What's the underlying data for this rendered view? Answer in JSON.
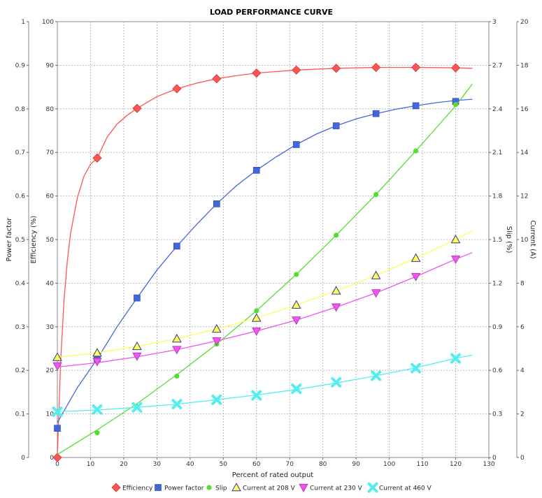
{
  "chart_data": {
    "type": "line",
    "title": "LOAD PERFORMANCE CURVE",
    "xlabel": "Percent of rated output",
    "xlim": [
      0,
      130
    ],
    "x_ticks": [
      0,
      10,
      20,
      30,
      40,
      50,
      60,
      70,
      80,
      90,
      100,
      110,
      120,
      130
    ],
    "grid": true,
    "legend_position": "bottom",
    "axes": {
      "power_factor": {
        "label": "Power factor",
        "lim": [
          0,
          1
        ],
        "ticks": [
          "0",
          "0.1",
          "0.2",
          "0.3",
          "0.4",
          "0.5",
          "0.6",
          "0.7",
          "0.8",
          "0.9",
          "1"
        ]
      },
      "efficiency": {
        "label": "Efficiency (%)",
        "lim": [
          0,
          100
        ],
        "ticks": [
          "0",
          "10",
          "20",
          "30",
          "40",
          "50",
          "60",
          "70",
          "80",
          "90",
          "100"
        ]
      },
      "slip": {
        "label": "Slip (%)",
        "lim": [
          0,
          3
        ],
        "ticks": [
          "0",
          "0.3",
          "0.6",
          "0.9",
          "1.2",
          "1.5",
          "1.8",
          "2.1",
          "2.4",
          "2.7",
          "3"
        ]
      },
      "current": {
        "label": "Current (A)",
        "lim": [
          0,
          20
        ],
        "ticks": [
          "0",
          "2",
          "4",
          "6",
          "8",
          "10",
          "12",
          "14",
          "16",
          "18",
          "20"
        ]
      }
    },
    "series": [
      {
        "name": "Efficiency",
        "axis": "efficiency",
        "color": "#ff5555",
        "marker": "diamond",
        "x": [
          0,
          12,
          24,
          36,
          48,
          60,
          72,
          84,
          96,
          108,
          120
        ],
        "values": [
          0,
          68.7,
          80.1,
          84.6,
          86.9,
          88.2,
          88.9,
          89.3,
          89.5,
          89.5,
          89.4
        ],
        "curve": [
          [
            0,
            0
          ],
          [
            1,
            22
          ],
          [
            2,
            36
          ],
          [
            3,
            45
          ],
          [
            4,
            51.5
          ],
          [
            6,
            59.5
          ],
          [
            8,
            64.5
          ],
          [
            10,
            67.3
          ],
          [
            12,
            68.7
          ],
          [
            15,
            73.5
          ],
          [
            18,
            76.5
          ],
          [
            21,
            78.5
          ],
          [
            24,
            80.1
          ],
          [
            30,
            82.8
          ],
          [
            36,
            84.6
          ],
          [
            42,
            85.9
          ],
          [
            48,
            86.9
          ],
          [
            54,
            87.6
          ],
          [
            60,
            88.2
          ],
          [
            72,
            88.9
          ],
          [
            84,
            89.3
          ],
          [
            96,
            89.5
          ],
          [
            108,
            89.5
          ],
          [
            120,
            89.4
          ],
          [
            125,
            89.3
          ]
        ]
      },
      {
        "name": "Power factor",
        "axis": "power_factor",
        "color": "#4466dd",
        "marker": "square",
        "x": [
          0,
          12,
          24,
          36,
          48,
          60,
          72,
          84,
          96,
          108,
          120
        ],
        "values": [
          0.067,
          0.226,
          0.366,
          0.485,
          0.582,
          0.659,
          0.718,
          0.761,
          0.789,
          0.807,
          0.817
        ],
        "curve": [
          [
            0,
            0.08
          ],
          [
            6,
            0.16
          ],
          [
            12,
            0.226
          ],
          [
            18,
            0.3
          ],
          [
            24,
            0.366
          ],
          [
            30,
            0.43
          ],
          [
            36,
            0.485
          ],
          [
            42,
            0.535
          ],
          [
            48,
            0.582
          ],
          [
            54,
            0.624
          ],
          [
            60,
            0.659
          ],
          [
            66,
            0.69
          ],
          [
            72,
            0.718
          ],
          [
            78,
            0.742
          ],
          [
            84,
            0.761
          ],
          [
            90,
            0.777
          ],
          [
            96,
            0.789
          ],
          [
            102,
            0.799
          ],
          [
            108,
            0.807
          ],
          [
            114,
            0.814
          ],
          [
            120,
            0.819
          ],
          [
            125,
            0.822
          ]
        ]
      },
      {
        "name": "Slip",
        "axis": "slip",
        "color": "#55dd33",
        "marker": "circle",
        "x": [
          12,
          24,
          36,
          48,
          60,
          72,
          84,
          96,
          108,
          120
        ],
        "values": [
          0.17,
          0.35,
          0.56,
          0.78,
          1.01,
          1.26,
          1.53,
          1.81,
          2.11,
          2.43
        ],
        "curve": [
          [
            0,
            0.02
          ],
          [
            12,
            0.19
          ],
          [
            24,
            0.37
          ],
          [
            36,
            0.57
          ],
          [
            48,
            0.78
          ],
          [
            60,
            1.01
          ],
          [
            72,
            1.26
          ],
          [
            84,
            1.53
          ],
          [
            96,
            1.81
          ],
          [
            108,
            2.11
          ],
          [
            120,
            2.42
          ],
          [
            125,
            2.57
          ]
        ]
      },
      {
        "name": "Current at 208 V",
        "axis": "current",
        "color": "#ffff55",
        "marker": "triangle-up",
        "x": [
          0,
          12,
          24,
          36,
          48,
          60,
          72,
          84,
          96,
          108,
          120
        ],
        "values": [
          4.6,
          4.8,
          5.1,
          5.45,
          5.9,
          6.4,
          7.0,
          7.65,
          8.35,
          9.15,
          10.0
        ],
        "curve": [
          [
            0,
            4.6
          ],
          [
            12,
            4.8
          ],
          [
            24,
            5.1
          ],
          [
            36,
            5.45
          ],
          [
            48,
            5.9
          ],
          [
            60,
            6.4
          ],
          [
            72,
            7.0
          ],
          [
            84,
            7.65
          ],
          [
            96,
            8.35
          ],
          [
            108,
            9.15
          ],
          [
            120,
            10.0
          ],
          [
            125,
            10.4
          ]
        ]
      },
      {
        "name": "Current at 230 V",
        "axis": "current",
        "color": "#ee55ee",
        "marker": "triangle-down",
        "x": [
          0,
          12,
          24,
          36,
          48,
          60,
          72,
          84,
          96,
          108,
          120
        ],
        "values": [
          4.2,
          4.4,
          4.65,
          4.95,
          5.35,
          5.8,
          6.3,
          6.9,
          7.55,
          8.3,
          9.1
        ],
        "curve": [
          [
            0,
            4.15
          ],
          [
            12,
            4.35
          ],
          [
            24,
            4.62
          ],
          [
            36,
            4.95
          ],
          [
            48,
            5.35
          ],
          [
            60,
            5.8
          ],
          [
            72,
            6.3
          ],
          [
            84,
            6.9
          ],
          [
            96,
            7.55
          ],
          [
            108,
            8.3
          ],
          [
            120,
            9.1
          ],
          [
            125,
            9.4
          ]
        ]
      },
      {
        "name": "Current at 460 V",
        "axis": "current",
        "color": "#55eeee",
        "marker": "x",
        "x": [
          0,
          12,
          24,
          36,
          48,
          60,
          72,
          84,
          96,
          108,
          120
        ],
        "values": [
          2.1,
          2.2,
          2.3,
          2.45,
          2.65,
          2.85,
          3.15,
          3.45,
          3.75,
          4.1,
          4.55
        ],
        "curve": [
          [
            0,
            2.1
          ],
          [
            12,
            2.18
          ],
          [
            24,
            2.3
          ],
          [
            36,
            2.45
          ],
          [
            48,
            2.65
          ],
          [
            60,
            2.87
          ],
          [
            72,
            3.12
          ],
          [
            84,
            3.42
          ],
          [
            96,
            3.75
          ],
          [
            108,
            4.12
          ],
          [
            120,
            4.55
          ],
          [
            125,
            4.7
          ]
        ]
      }
    ]
  }
}
